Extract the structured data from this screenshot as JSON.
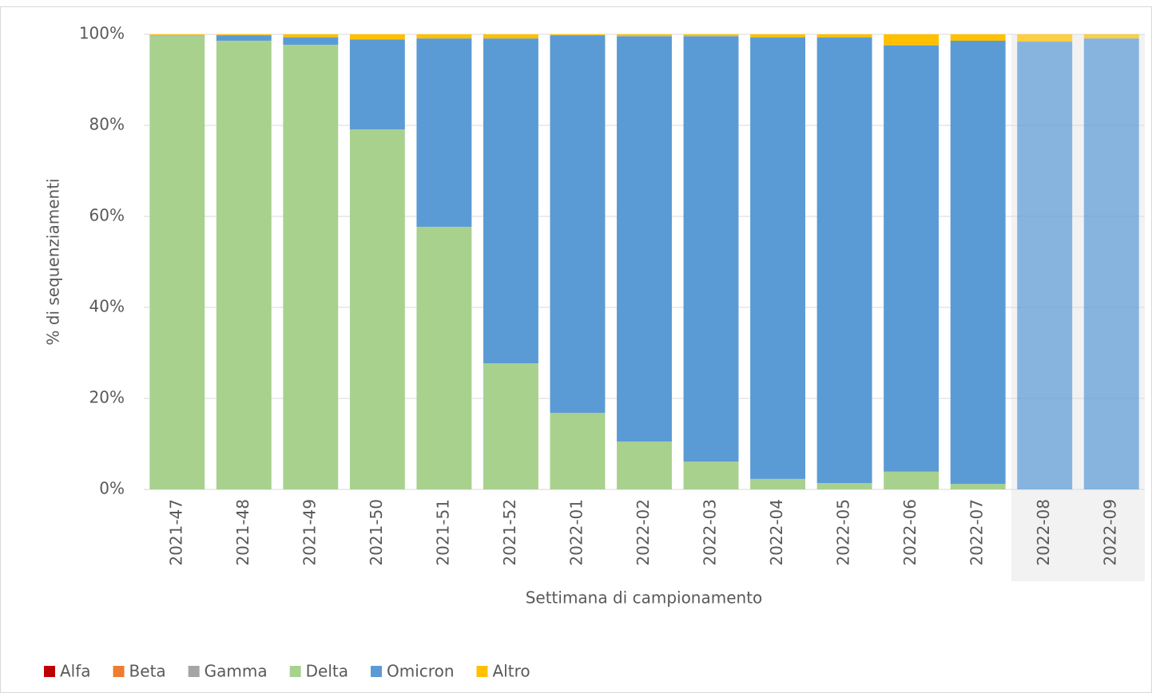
{
  "chart_data": {
    "type": "stacked_bar",
    "x_label": "Settimana di campionamento",
    "y_label": "% di sequenziamenti",
    "categories": [
      "2021-47",
      "2021-48",
      "2021-49",
      "2021-50",
      "2021-51",
      "2021-52",
      "2022-01",
      "2022-02",
      "2022-03",
      "2022-04",
      "2022-05",
      "2022-06",
      "2022-07",
      "2022-08",
      "2022-09"
    ],
    "faded": [
      false,
      false,
      false,
      false,
      false,
      false,
      false,
      false,
      false,
      false,
      false,
      false,
      false,
      true,
      true
    ],
    "series": [
      {
        "name": "Alfa",
        "color": "#c00000",
        "values": [
          0,
          0,
          0,
          0,
          0,
          0,
          0,
          0,
          0,
          0,
          0,
          0,
          0,
          0,
          0
        ]
      },
      {
        "name": "Beta",
        "color": "#ed7d31",
        "values": [
          0,
          0,
          0,
          0,
          0,
          0,
          0,
          0,
          0,
          0,
          0,
          0,
          0,
          0,
          0
        ]
      },
      {
        "name": "Gamma",
        "color": "#a5a5a5",
        "values": [
          0,
          0,
          0,
          0,
          0,
          0,
          0,
          0,
          0,
          0,
          0,
          0,
          0,
          0,
          0
        ]
      },
      {
        "name": "Delta",
        "color": "#a9d18e",
        "values": [
          99.6,
          98.6,
          97.7,
          79.1,
          57.7,
          27.7,
          16.8,
          10.5,
          6.1,
          2.3,
          1.4,
          3.9,
          1.2,
          0,
          0
        ]
      },
      {
        "name": "Omicron",
        "color": "#5b9bd5",
        "values": [
          0.1,
          1.2,
          1.6,
          19.8,
          41.4,
          71.4,
          83.0,
          89.1,
          93.5,
          97.0,
          97.9,
          93.7,
          97.4,
          98.4,
          99.1
        ]
      },
      {
        "name": "Altro",
        "color": "#ffc000",
        "values": [
          0.3,
          0.2,
          0.7,
          1.1,
          0.9,
          0.9,
          0.2,
          0.4,
          0.4,
          0.7,
          0.7,
          2.4,
          1.4,
          1.6,
          0.9
        ]
      }
    ],
    "ylim": [
      0,
      100
    ],
    "yticks": [
      {
        "value": 0,
        "label": "0%"
      },
      {
        "value": 20,
        "label": "20%"
      },
      {
        "value": 40,
        "label": "40%"
      },
      {
        "value": 60,
        "label": "60%"
      },
      {
        "value": 80,
        "label": "80%"
      },
      {
        "value": 100,
        "label": "100%"
      }
    ],
    "grid": true,
    "legend": "bottom-left"
  }
}
